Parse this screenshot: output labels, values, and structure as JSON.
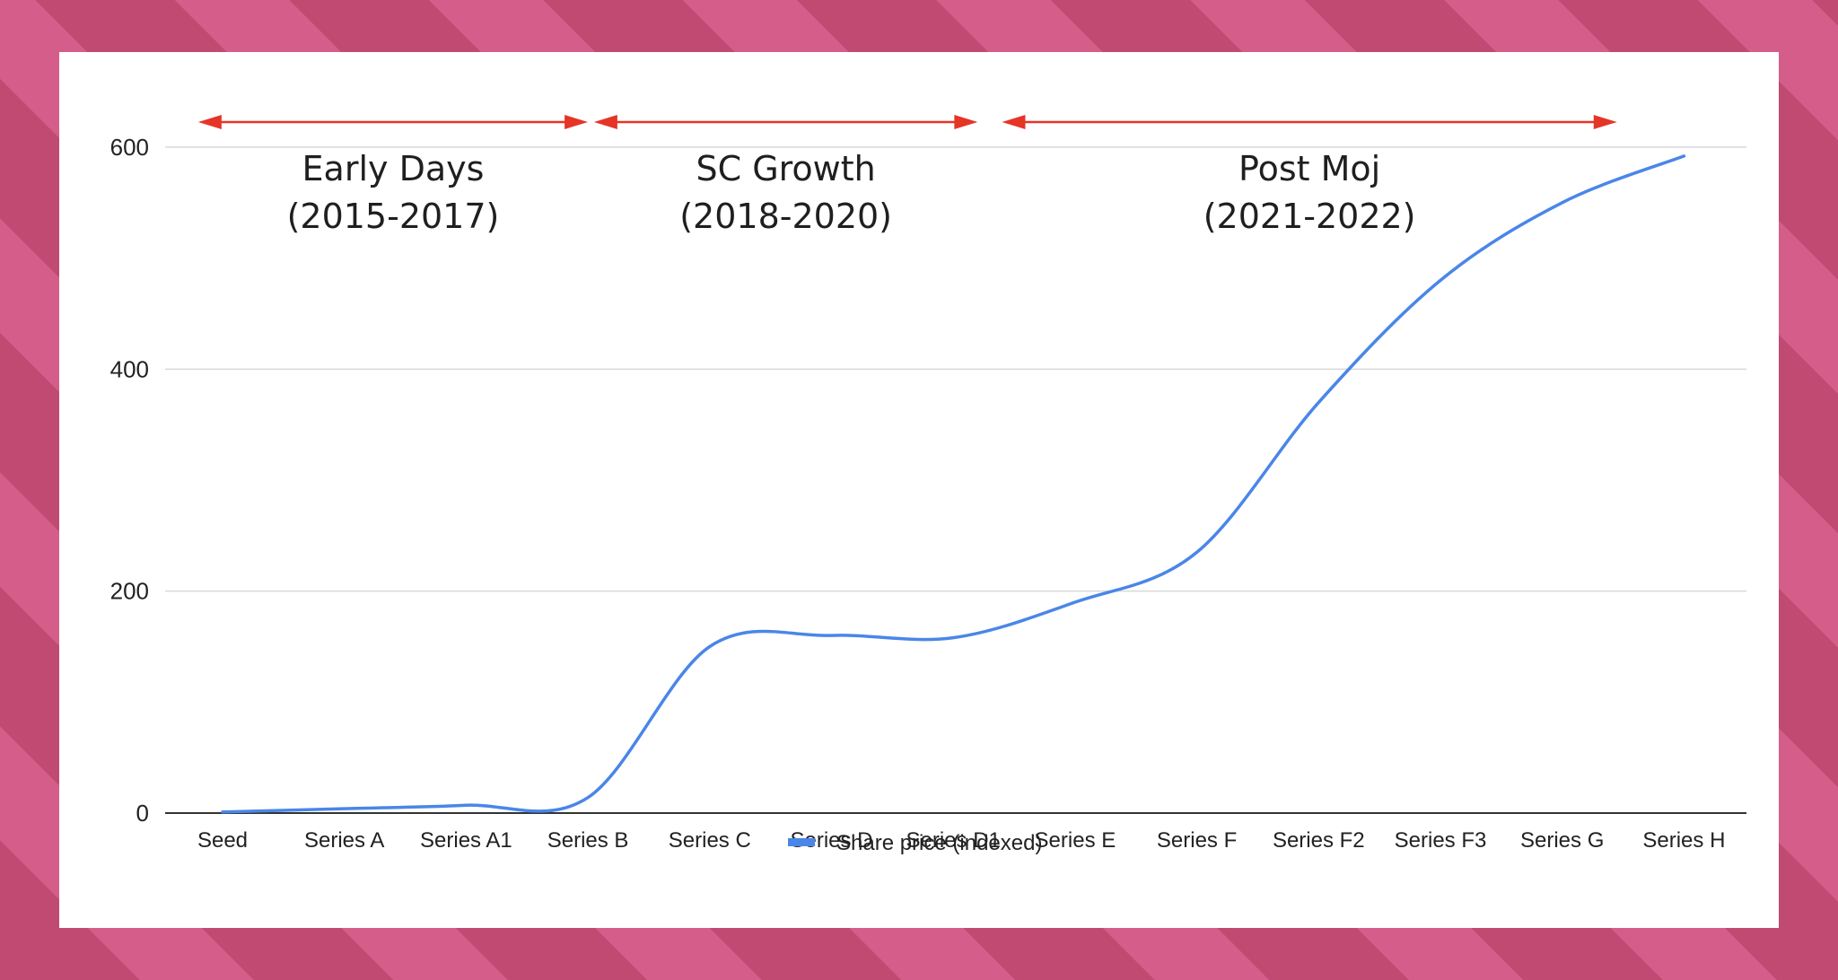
{
  "chart_data": {
    "type": "line",
    "categories": [
      "Seed",
      "Series A",
      "Series A1",
      "Series B",
      "Series C",
      "Series D",
      "Series D1",
      "Series E",
      "Series F",
      "Series F2",
      "Series F3",
      "Series G",
      "Series H"
    ],
    "series": [
      {
        "name": "Share price (indexed)",
        "values": [
          1,
          4,
          7,
          14,
          150,
          160,
          158,
          190,
          235,
          370,
          480,
          550,
          592
        ]
      }
    ],
    "ylim": [
      0,
      600
    ],
    "yticks": [
      0,
      200,
      400,
      600
    ],
    "grid": true,
    "legend_position": "bottom-center",
    "title": "",
    "xlabel": "",
    "ylabel": "",
    "annotations": [
      {
        "line1": "Early Days",
        "line2": "(2015-2017)",
        "from": -0.2,
        "to": 3.0
      },
      {
        "line1": "SC Growth",
        "line2": "(2018-2020)",
        "from": 3.05,
        "to": 6.2
      },
      {
        "line1": "Post Moj",
        "line2": "(2021-2022)",
        "from": 6.4,
        "to": 11.45
      }
    ],
    "colors": {
      "line": "#4a86e8",
      "arrow": "#e53527",
      "grid": "#d9d9d9",
      "axis": "#333333"
    }
  }
}
